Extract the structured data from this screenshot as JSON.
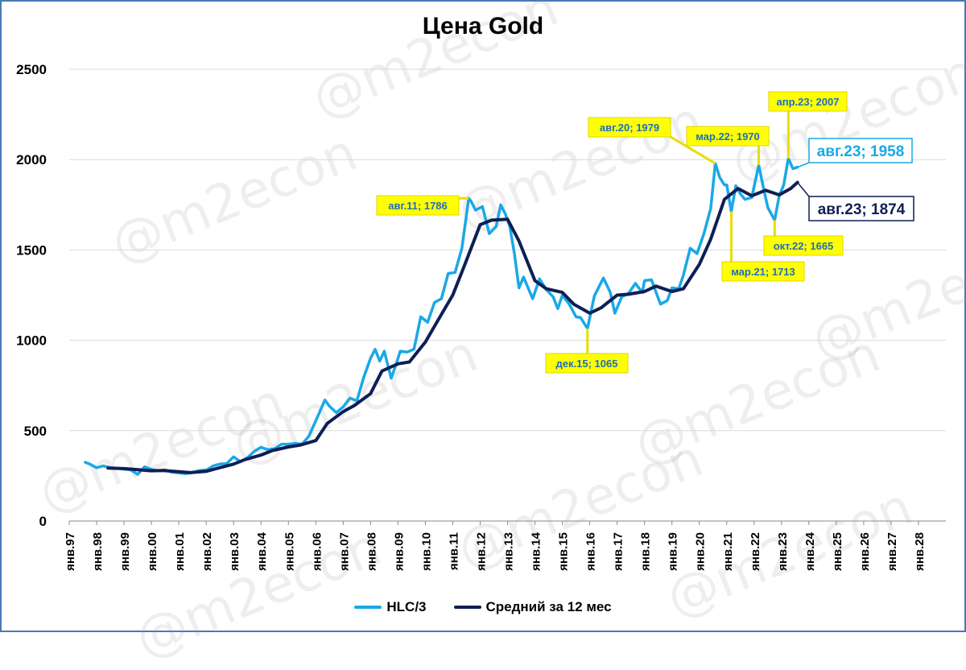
{
  "watermark": "@m2econ",
  "chart_data": {
    "type": "line",
    "title": "Цена Gold",
    "ylim": [
      0,
      2500
    ],
    "yticks": [
      "0",
      "500",
      "1000",
      "1500",
      "2000",
      "2500"
    ],
    "x_range": [
      "1997-01",
      "2029-01"
    ],
    "xtick_labels": [
      "янв.97",
      "янв.98",
      "янв.99",
      "янв.00",
      "янв.01",
      "янв.02",
      "янв.03",
      "янв.04",
      "янв.05",
      "янв.06",
      "янв.07",
      "янв.08",
      "янв.09",
      "янв.10",
      "янв.11",
      "янв.12",
      "янв.13",
      "янв.14",
      "янв.15",
      "янв.16",
      "янв.17",
      "янв.18",
      "янв.19",
      "янв.20",
      "янв.21",
      "янв.22",
      "янв.23",
      "янв.24",
      "янв.25",
      "янв.26",
      "янв.27",
      "янв.28"
    ],
    "grid": "horizontal",
    "legend_position": "bottom",
    "series": [
      {
        "name": "HLC/3",
        "color": "#1aa8e6",
        "points": [
          [
            "1997-08",
            325
          ],
          [
            "1997-10",
            315
          ],
          [
            "1998-01",
            295
          ],
          [
            "1998-04",
            305
          ],
          [
            "1998-07",
            295
          ],
          [
            "1998-10",
            292
          ],
          [
            "1999-01",
            287
          ],
          [
            "1999-04",
            283
          ],
          [
            "1999-07",
            258
          ],
          [
            "1999-10",
            300
          ],
          [
            "2000-01",
            285
          ],
          [
            "2000-04",
            278
          ],
          [
            "2000-07",
            283
          ],
          [
            "2000-10",
            270
          ],
          [
            "2001-01",
            266
          ],
          [
            "2001-04",
            262
          ],
          [
            "2001-07",
            268
          ],
          [
            "2001-10",
            280
          ],
          [
            "2002-01",
            282
          ],
          [
            "2002-04",
            305
          ],
          [
            "2002-07",
            315
          ],
          [
            "2002-10",
            318
          ],
          [
            "2003-01",
            355
          ],
          [
            "2003-04",
            328
          ],
          [
            "2003-07",
            350
          ],
          [
            "2003-10",
            385
          ],
          [
            "2004-01",
            408
          ],
          [
            "2004-04",
            395
          ],
          [
            "2004-07",
            400
          ],
          [
            "2004-10",
            425
          ],
          [
            "2005-01",
            425
          ],
          [
            "2005-04",
            430
          ],
          [
            "2005-07",
            425
          ],
          [
            "2005-10",
            470
          ],
          [
            "2006-01",
            555
          ],
          [
            "2006-05",
            670
          ],
          [
            "2006-07",
            635
          ],
          [
            "2006-10",
            600
          ],
          [
            "2007-01",
            632
          ],
          [
            "2007-04",
            680
          ],
          [
            "2007-07",
            665
          ],
          [
            "2007-10",
            795
          ],
          [
            "2008-01",
            900
          ],
          [
            "2008-03",
            950
          ],
          [
            "2008-05",
            885
          ],
          [
            "2008-07",
            940
          ],
          [
            "2008-10",
            790
          ],
          [
            "2008-12",
            860
          ],
          [
            "2009-02",
            940
          ],
          [
            "2009-05",
            935
          ],
          [
            "2009-08",
            950
          ],
          [
            "2009-11",
            1130
          ],
          [
            "2010-02",
            1100
          ],
          [
            "2010-05",
            1210
          ],
          [
            "2010-08",
            1230
          ],
          [
            "2010-11",
            1370
          ],
          [
            "2011-02",
            1375
          ],
          [
            "2011-05",
            1510
          ],
          [
            "2011-08",
            1786
          ],
          [
            "2011-09",
            1770
          ],
          [
            "2011-11",
            1720
          ],
          [
            "2012-02",
            1740
          ],
          [
            "2012-05",
            1590
          ],
          [
            "2012-08",
            1630
          ],
          [
            "2012-10",
            1750
          ],
          [
            "2012-12",
            1700
          ],
          [
            "2013-02",
            1630
          ],
          [
            "2013-04",
            1480
          ],
          [
            "2013-06",
            1290
          ],
          [
            "2013-08",
            1350
          ],
          [
            "2013-12",
            1230
          ],
          [
            "2014-03",
            1340
          ],
          [
            "2014-06",
            1280
          ],
          [
            "2014-09",
            1240
          ],
          [
            "2014-11",
            1175
          ],
          [
            "2015-01",
            1250
          ],
          [
            "2015-04",
            1200
          ],
          [
            "2015-07",
            1130
          ],
          [
            "2015-09",
            1125
          ],
          [
            "2015-12",
            1065
          ],
          [
            "2016-03",
            1245
          ],
          [
            "2016-07",
            1345
          ],
          [
            "2016-10",
            1265
          ],
          [
            "2016-12",
            1150
          ],
          [
            "2017-03",
            1240
          ],
          [
            "2017-06",
            1260
          ],
          [
            "2017-09",
            1315
          ],
          [
            "2017-12",
            1265
          ],
          [
            "2018-01",
            1330
          ],
          [
            "2018-04",
            1335
          ],
          [
            "2018-08",
            1200
          ],
          [
            "2018-11",
            1220
          ],
          [
            "2019-01",
            1290
          ],
          [
            "2019-04",
            1285
          ],
          [
            "2019-06",
            1360
          ],
          [
            "2019-09",
            1510
          ],
          [
            "2019-12",
            1480
          ],
          [
            "2020-03",
            1590
          ],
          [
            "2020-06",
            1730
          ],
          [
            "2020-08",
            1979
          ],
          [
            "2020-10",
            1900
          ],
          [
            "2020-12",
            1860
          ],
          [
            "2021-01",
            1860
          ],
          [
            "2021-03",
            1713
          ],
          [
            "2021-05",
            1855
          ],
          [
            "2021-07",
            1810
          ],
          [
            "2021-09",
            1780
          ],
          [
            "2021-12",
            1790
          ],
          [
            "2022-03",
            1970
          ],
          [
            "2022-05",
            1850
          ],
          [
            "2022-07",
            1735
          ],
          [
            "2022-10",
            1665
          ],
          [
            "2022-12",
            1800
          ],
          [
            "2023-02",
            1860
          ],
          [
            "2023-04",
            2007
          ],
          [
            "2023-06",
            1950
          ],
          [
            "2023-08",
            1958
          ]
        ]
      },
      {
        "name": "Средний за 12 мес",
        "color": "#0d1f55",
        "points": [
          [
            "1998-06",
            293
          ],
          [
            "1999-01",
            290
          ],
          [
            "1999-06",
            285
          ],
          [
            "2000-01",
            278
          ],
          [
            "2000-06",
            280
          ],
          [
            "2001-01",
            273
          ],
          [
            "2001-06",
            268
          ],
          [
            "2002-01",
            275
          ],
          [
            "2002-06",
            292
          ],
          [
            "2003-01",
            315
          ],
          [
            "2003-06",
            340
          ],
          [
            "2004-01",
            365
          ],
          [
            "2004-06",
            390
          ],
          [
            "2005-01",
            410
          ],
          [
            "2005-06",
            420
          ],
          [
            "2006-01",
            445
          ],
          [
            "2006-06",
            540
          ],
          [
            "2007-01",
            605
          ],
          [
            "2007-06",
            640
          ],
          [
            "2008-01",
            705
          ],
          [
            "2008-06",
            830
          ],
          [
            "2009-01",
            870
          ],
          [
            "2009-06",
            880
          ],
          [
            "2010-01",
            990
          ],
          [
            "2010-06",
            1100
          ],
          [
            "2011-01",
            1250
          ],
          [
            "2011-06",
            1410
          ],
          [
            "2012-01",
            1640
          ],
          [
            "2012-06",
            1665
          ],
          [
            "2013-01",
            1670
          ],
          [
            "2013-06",
            1550
          ],
          [
            "2014-01",
            1330
          ],
          [
            "2014-06",
            1285
          ],
          [
            "2015-01",
            1265
          ],
          [
            "2015-06",
            1200
          ],
          [
            "2016-01",
            1150
          ],
          [
            "2016-06",
            1180
          ],
          [
            "2017-01",
            1250
          ],
          [
            "2017-06",
            1255
          ],
          [
            "2018-01",
            1270
          ],
          [
            "2018-06",
            1300
          ],
          [
            "2019-01",
            1270
          ],
          [
            "2019-06",
            1285
          ],
          [
            "2020-01",
            1420
          ],
          [
            "2020-06",
            1560
          ],
          [
            "2020-12",
            1780
          ],
          [
            "2021-06",
            1840
          ],
          [
            "2021-12",
            1800
          ],
          [
            "2022-06",
            1830
          ],
          [
            "2022-12",
            1805
          ],
          [
            "2023-05",
            1840
          ],
          [
            "2023-08",
            1874
          ]
        ]
      }
    ],
    "annotations": [
      {
        "label": "авг.11; 1786",
        "date": "2011-08",
        "value": 1786,
        "series": 0
      },
      {
        "label": "дек.15; 1065",
        "date": "2015-12",
        "value": 1065,
        "series": 0
      },
      {
        "label": "авг.20; 1979",
        "date": "2020-08",
        "value": 1979,
        "series": 0
      },
      {
        "label": "мар.21; 1713",
        "date": "2021-03",
        "value": 1713,
        "series": 0
      },
      {
        "label": "мар.22; 1970",
        "date": "2022-03",
        "value": 1970,
        "series": 0
      },
      {
        "label": "окт.22; 1665",
        "date": "2022-10",
        "value": 1665,
        "series": 0
      },
      {
        "label": "апр.23; 2007",
        "date": "2023-04",
        "value": 2007,
        "series": 0
      },
      {
        "label": "авг.23; 1958",
        "date": "2023-08",
        "value": 1958,
        "series": 0
      },
      {
        "label": "авг.23; 1874",
        "date": "2023-08",
        "value": 1874,
        "series": 1
      }
    ]
  }
}
